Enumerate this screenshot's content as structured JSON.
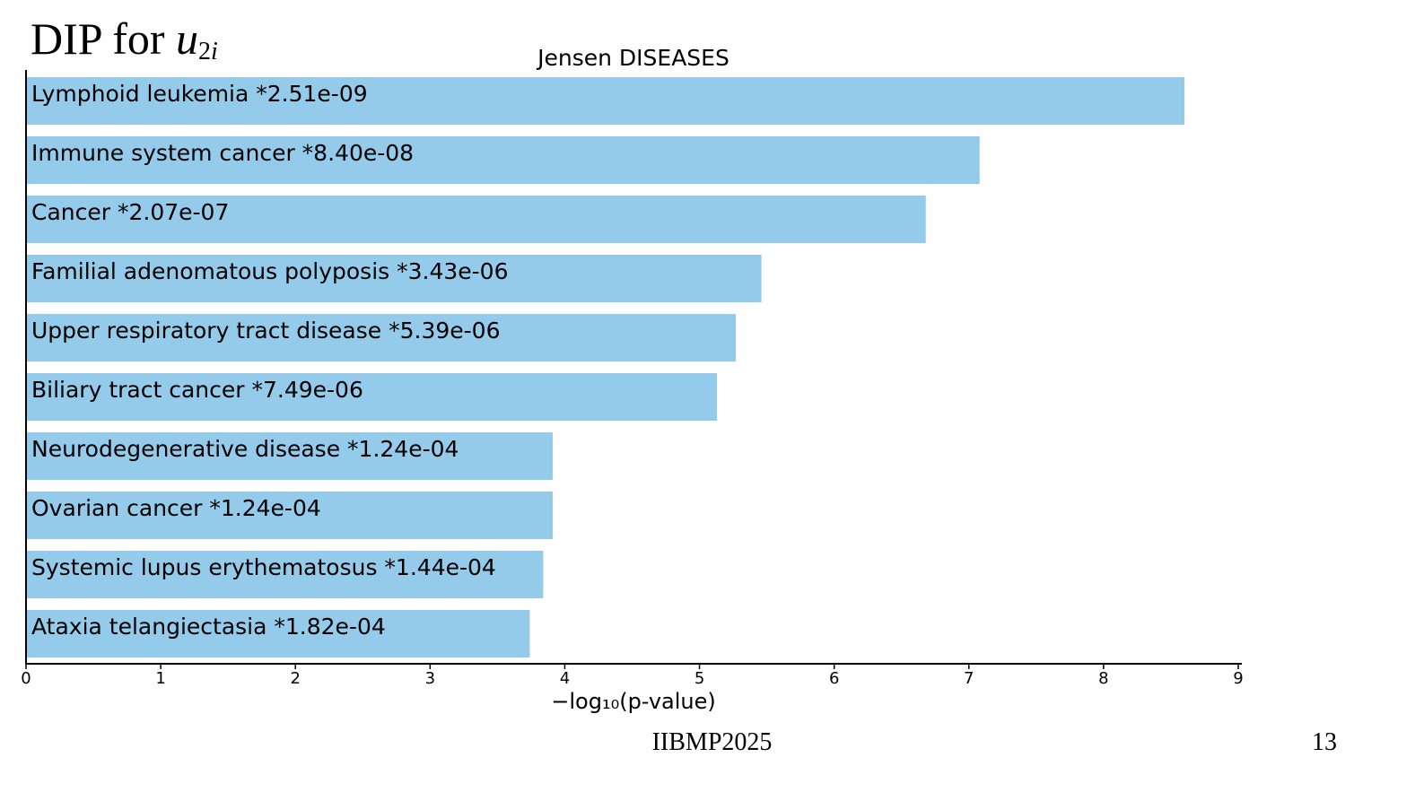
{
  "slide": {
    "title_prefix": "DIP for ",
    "title_var": "u",
    "title_sub_num": "2",
    "title_sub_idx": "i",
    "footer": "IIBMP2025",
    "page_number": "13"
  },
  "chart_data": {
    "type": "bar",
    "orientation": "horizontal",
    "title": "Jensen DISEASES",
    "xlabel": "−log₁₀(p-value)",
    "ylabel": "",
    "xlim": [
      0,
      9
    ],
    "xticks": [
      0,
      1,
      2,
      3,
      4,
      5,
      6,
      7,
      8,
      9
    ],
    "bar_color": "#95cbea",
    "grid": false,
    "categories": [
      "Lymphoid leukemia",
      "Immune system cancer",
      "Cancer",
      "Familial adenomatous polyposis",
      "Upper respiratory tract disease",
      "Biliary tract cancer",
      "Neurodegenerative disease",
      "Ovarian cancer",
      "Systemic lupus erythematosus",
      "Ataxia telangiectasia"
    ],
    "values": [
      8.6,
      7.08,
      6.68,
      5.46,
      5.27,
      5.13,
      3.91,
      3.91,
      3.84,
      3.74
    ],
    "pvalue_labels": [
      "*2.51e-09",
      "*8.40e-08",
      "*2.07e-07",
      "*3.43e-06",
      "*5.39e-06",
      "*7.49e-06",
      "*1.24e-04",
      "*1.24e-04",
      "*1.44e-04",
      "*1.82e-04"
    ]
  }
}
